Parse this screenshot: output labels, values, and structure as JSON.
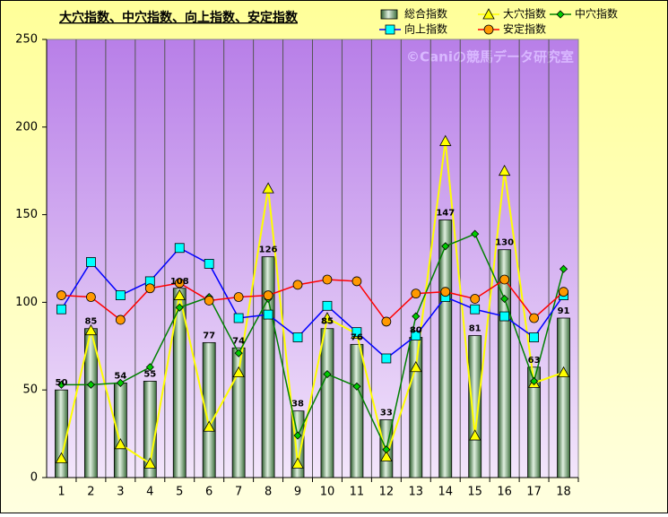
{
  "chart_data": {
    "type": "combo",
    "title": "大穴指数、中穴指数、向上指数、安定指数",
    "watermark": "©Caniの競馬データ研究室",
    "categories": [
      1,
      2,
      3,
      4,
      5,
      6,
      7,
      8,
      9,
      10,
      11,
      12,
      13,
      14,
      15,
      16,
      17,
      18
    ],
    "ylim": [
      0,
      250
    ],
    "yticks": [
      0,
      50,
      100,
      150,
      200,
      250
    ],
    "series": [
      {
        "name": "総合指数",
        "type": "bar",
        "color": "#8fbf8f",
        "values": [
          50,
          85,
          54,
          55,
          108,
          77,
          74,
          126,
          38,
          85,
          76,
          33,
          80,
          147,
          81,
          130,
          63,
          91
        ]
      },
      {
        "name": "大穴指数",
        "type": "line",
        "marker": "triangle",
        "color": "#ffff00",
        "marker_color": "#ffff00",
        "values": [
          11,
          84,
          19,
          8,
          104,
          29,
          60,
          165,
          8,
          91,
          82,
          12,
          63,
          192,
          24,
          175,
          54,
          60
        ]
      },
      {
        "name": "中穴指数",
        "type": "line",
        "marker": "diamond",
        "color": "#008000",
        "marker_color": "#00cc00",
        "values": [
          53,
          53,
          54,
          63,
          97,
          103,
          71,
          102,
          24,
          59,
          52,
          16,
          92,
          132,
          139,
          102,
          55,
          119
        ]
      },
      {
        "name": "向上指数",
        "type": "line",
        "marker": "square",
        "color": "#0000ff",
        "marker_color": "#00ffff",
        "values": [
          96,
          123,
          104,
          112,
          131,
          122,
          91,
          93,
          80,
          98,
          83,
          68,
          81,
          103,
          96,
          92,
          80,
          104
        ]
      },
      {
        "name": "安定指数",
        "type": "line",
        "marker": "circle",
        "color": "#ff0000",
        "marker_color": "#ff9900",
        "values": [
          104,
          103,
          90,
          108,
          111,
          101,
          103,
          104,
          110,
          113,
          112,
          89,
          105,
          106,
          102,
          113,
          91,
          106
        ]
      }
    ]
  }
}
